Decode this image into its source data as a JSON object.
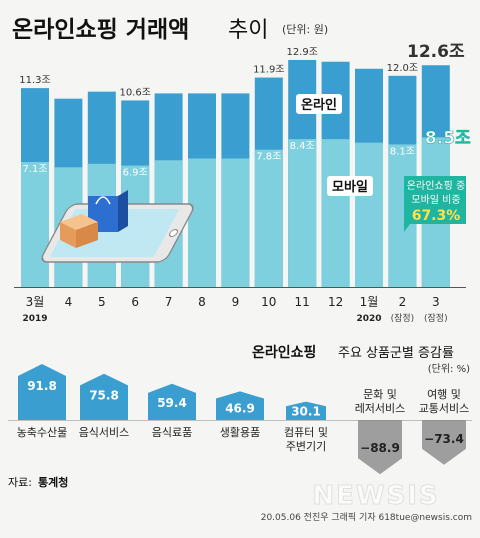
{
  "header": {
    "title": "온라인쇼핑 거래액",
    "title_suffix": "추이",
    "unit": "(단위: 원)"
  },
  "colors": {
    "online_bar": "#3a9fd0",
    "mobile_bar": "#7fd0df",
    "accent_green": "#20b5a0",
    "highlight_yellow": "#ffe24a",
    "category_bar": "#3a9fd0",
    "negative_bar": "#9e9e9e"
  },
  "chart_data": [
    {
      "type": "bar",
      "title": "온라인쇼핑 거래액 추이",
      "unit": "(단위: 원)",
      "categories": [
        "3월",
        "4",
        "5",
        "6",
        "7",
        "8",
        "9",
        "10",
        "11",
        "12",
        "1월",
        "2",
        "3"
      ],
      "year_labels": [
        "2019",
        "2020"
      ],
      "sub_labels": [
        "(잠정)",
        "(잠정)"
      ],
      "series": [
        {
          "name": "온라인",
          "values": [
            11.3,
            10.7,
            11.1,
            10.6,
            11.0,
            11.0,
            11.0,
            11.9,
            12.9,
            12.8,
            12.4,
            12.0,
            12.6
          ]
        },
        {
          "name": "모바일",
          "values": [
            7.1,
            6.8,
            7.0,
            6.9,
            7.2,
            7.3,
            7.3,
            7.8,
            8.4,
            8.4,
            8.2,
            8.1,
            8.5
          ]
        }
      ],
      "value_labels": {
        "online": [
          "11.3조",
          "",
          "",
          "10.6조",
          "",
          "",
          "",
          "11.9조",
          "12.9조",
          "",
          "",
          "12.0조",
          "12.6조"
        ],
        "mobile": [
          "7.1조",
          "",
          "",
          "6.9조",
          "",
          "",
          "",
          "7.8조",
          "8.4조",
          "",
          "",
          "8.1조",
          "8.5조"
        ]
      },
      "callout": {
        "label_line1": "온라인쇼핑 중",
        "label_line2": "모바일 비중",
        "value": "67.3%"
      }
    },
    {
      "type": "bar",
      "title": "온라인쇼핑 주요 상품군별 증감률",
      "title_bold": "온라인쇼핑",
      "title_rest": "주요 상품군별 증감률",
      "unit": "(단위: %)",
      "categories": [
        "농축수산물",
        "음식서비스",
        "음식료품",
        "생활용품",
        "컴퓨터 및 주변기기",
        "문화 및 레저서비스",
        "여행 및 교통서비스"
      ],
      "category_lines": [
        [
          "농축수산물"
        ],
        [
          "음식서비스"
        ],
        [
          "음식료품"
        ],
        [
          "생활용품"
        ],
        [
          "컴퓨터 및",
          "주변기기"
        ],
        [
          "문화 및",
          "레저서비스"
        ],
        [
          "여행 및",
          "교통서비스"
        ]
      ],
      "values": [
        91.8,
        75.8,
        59.4,
        46.9,
        30.1,
        -88.9,
        -73.4
      ],
      "value_labels": [
        "91.8",
        "75.8",
        "59.4",
        "46.9",
        "30.1",
        "−88.9",
        "−73.4"
      ]
    }
  ],
  "footer": {
    "source_prefix": "자료:",
    "source_name": "통계청",
    "credit": "20.05.06 전진우 그래픽 기자 618tue@newsis.com",
    "watermark": "NEWSIS"
  }
}
